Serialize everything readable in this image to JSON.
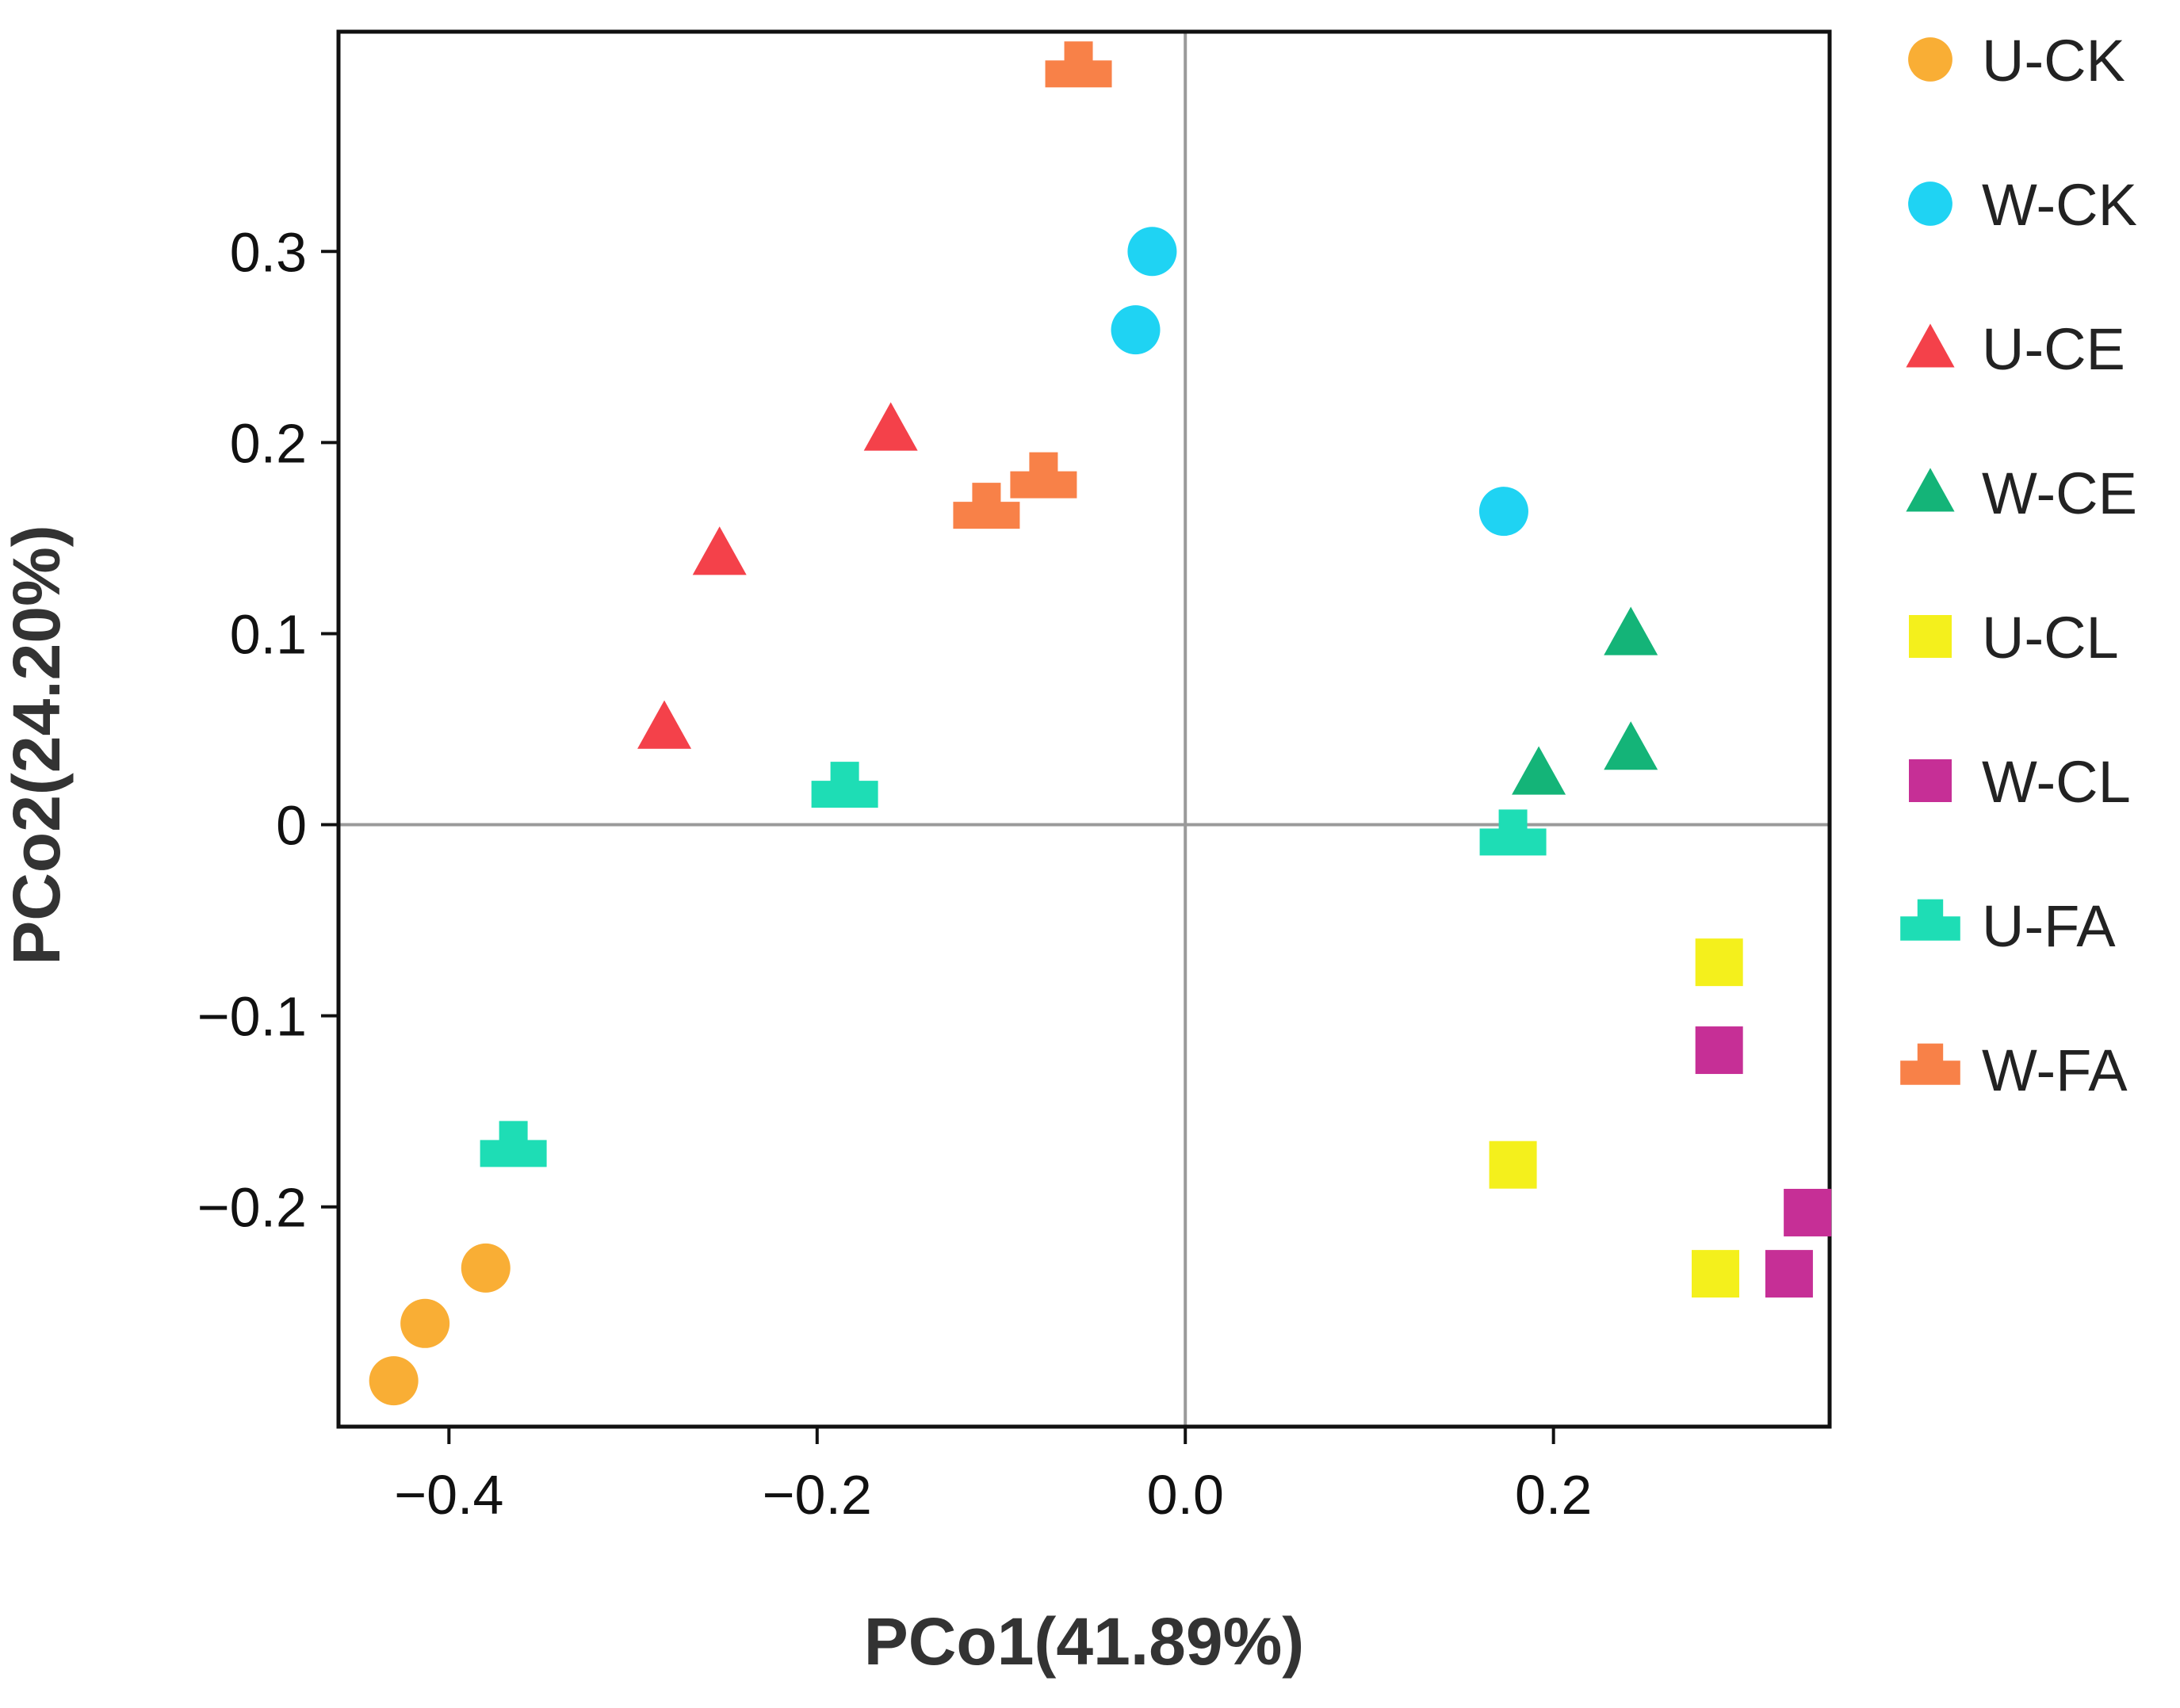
{
  "chart_data": {
    "type": "scatter",
    "title": "",
    "xlabel": "PCo1(41.89%)",
    "ylabel": "PCo2(24.20%)",
    "xlim": [
      -0.46,
      0.35
    ],
    "ylim": [
      -0.315,
      0.415
    ],
    "xticks": [
      -0.4,
      -0.2,
      0.0,
      0.2
    ],
    "xtick_labels": [
      "−0.4",
      "−0.2",
      "0.0",
      "0.2"
    ],
    "yticks": [
      -0.2,
      -0.1,
      0,
      0.1,
      0.2,
      0.3
    ],
    "ytick_labels": [
      "−0.2",
      "−0.1",
      "0",
      "0.1",
      "0.2",
      "0.3"
    ],
    "reference_lines": {
      "x": 0,
      "y": 0
    },
    "grid": false,
    "legend_position": "right",
    "series": [
      {
        "name": "U-CK",
        "marker": "circle",
        "color": "#F9AE35",
        "points": [
          [
            -0.38,
            -0.232
          ],
          [
            -0.413,
            -0.261
          ],
          [
            -0.43,
            -0.291
          ]
        ]
      },
      {
        "name": "W-CK",
        "marker": "circle",
        "color": "#1FD3F3",
        "points": [
          [
            -0.018,
            0.3
          ],
          [
            -0.027,
            0.259
          ],
          [
            0.173,
            0.164
          ]
        ]
      },
      {
        "name": "U-CE",
        "marker": "triangle",
        "color": "#F4414A",
        "points": [
          [
            -0.16,
            0.207
          ],
          [
            -0.253,
            0.142
          ],
          [
            -0.283,
            0.051
          ]
        ]
      },
      {
        "name": "W-CE",
        "marker": "triangle",
        "color": "#14B478",
        "points": [
          [
            0.242,
            0.1
          ],
          [
            0.242,
            0.04
          ],
          [
            0.192,
            0.027
          ]
        ]
      },
      {
        "name": "U-CL",
        "marker": "square",
        "color": "#F4F01C",
        "points": [
          [
            0.29,
            -0.072
          ],
          [
            0.178,
            -0.178
          ],
          [
            0.288,
            -0.235
          ]
        ]
      },
      {
        "name": "W-CL",
        "marker": "square",
        "color": "#C62F96",
        "points": [
          [
            0.29,
            -0.118
          ],
          [
            0.338,
            -0.203
          ],
          [
            0.328,
            -0.235
          ]
        ]
      },
      {
        "name": "U-FA",
        "marker": "cross-block",
        "color": "#1EDDB5",
        "points": [
          [
            -0.185,
            0.018
          ],
          [
            0.178,
            -0.007
          ],
          [
            -0.365,
            -0.17
          ]
        ]
      },
      {
        "name": "W-FA",
        "marker": "cross-block",
        "color": "#F88148",
        "points": [
          [
            -0.058,
            0.395
          ],
          [
            -0.077,
            0.18
          ],
          [
            -0.108,
            0.164
          ]
        ]
      }
    ]
  }
}
